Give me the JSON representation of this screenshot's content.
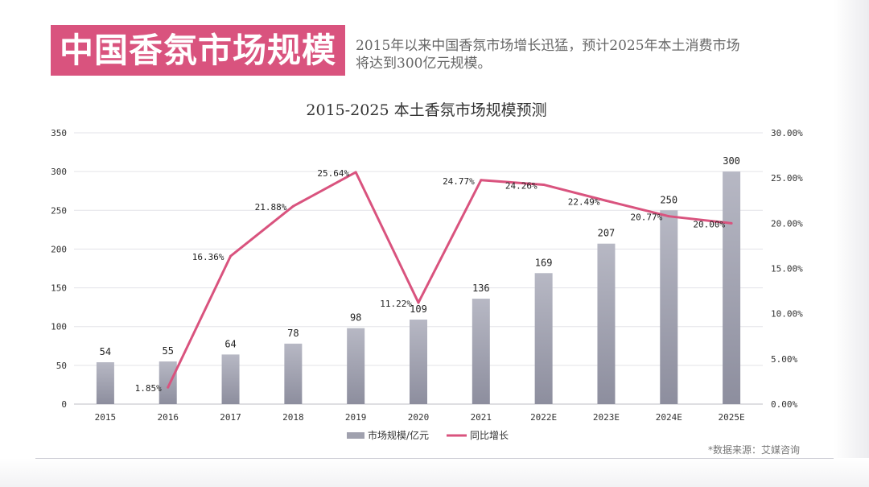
{
  "header": {
    "title": "中国香氛市场规模",
    "subtitle_line1": "2015年以来中国香氛市场增长迅猛，预计2025年本土消费市场",
    "subtitle_line2": "将达到300亿元规模。"
  },
  "source": "*数据来源：艾媒咨询",
  "chart_data": {
    "type": "bar",
    "title": "2015-2025 本土香氛市场规模预测",
    "categories": [
      "2015",
      "2016",
      "2017",
      "2018",
      "2019",
      "2020",
      "2021",
      "2022E",
      "2023E",
      "2024E",
      "2025E"
    ],
    "series": [
      {
        "name": "市场规模/亿元",
        "type": "bar",
        "axis": "left",
        "color": "#a0a1ae",
        "values": [
          54,
          55,
          64,
          78,
          98,
          109,
          136,
          169,
          207,
          250,
          300
        ]
      },
      {
        "name": "同比增长",
        "type": "line",
        "axis": "right",
        "color": "#d9537e",
        "values": [
          null,
          1.85,
          16.36,
          21.88,
          25.64,
          11.22,
          24.77,
          24.26,
          22.49,
          20.77,
          20.0
        ],
        "labels": [
          "",
          "1.85%",
          "16.36%",
          "21.88%",
          "25.64%",
          "11.22%",
          "24.77%",
          "24.26%",
          "22.49%",
          "20.77%",
          "20.00%"
        ]
      }
    ],
    "bar_labels": [
      "54",
      "55",
      "64",
      "78",
      "98",
      "109",
      "136",
      "169",
      "207",
      "250",
      "300"
    ],
    "y_left": {
      "min": 0,
      "max": 350,
      "ticks": [
        "0",
        "50",
        "100",
        "150",
        "200",
        "250",
        "300",
        "350"
      ]
    },
    "y_right": {
      "min": 0,
      "max": 30,
      "ticks": [
        "0.00%",
        "5.00%",
        "10.00%",
        "15.00%",
        "20.00%",
        "25.00%",
        "30.00%"
      ]
    },
    "grid": true,
    "legend_position": "bottom"
  }
}
